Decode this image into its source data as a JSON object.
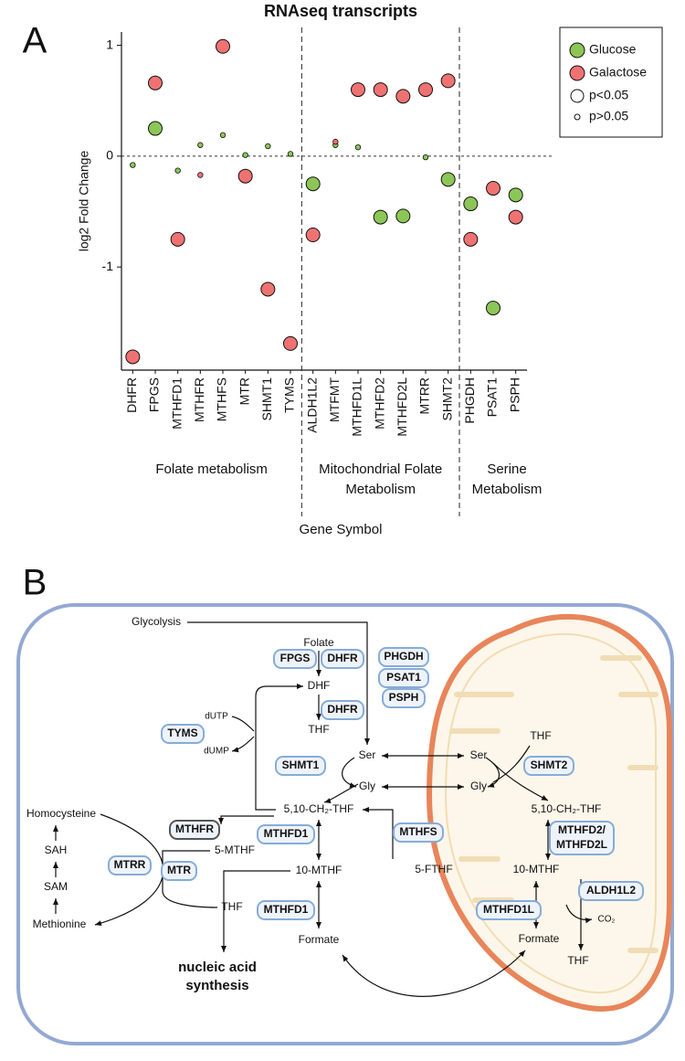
{
  "chart_data": {
    "type": "scatter",
    "title": "RNAseq transcripts",
    "panel_label": "A",
    "y_label": "log2 Fold Change",
    "x_label": "Gene Symbol",
    "categories": [
      "DHFR",
      "FPGS",
      "MTHFD1",
      "MTHFR",
      "MTHFS",
      "MTR",
      "SHMT1",
      "TYMS",
      "ALDH1L2",
      "MTFMT",
      "MTHFD1L",
      "MTHFD2",
      "MTHFD2L",
      "MTRR",
      "SHMT2",
      "PHGDH",
      "PSAT1",
      "PSPH"
    ],
    "series": [
      {
        "name": "Glucose",
        "color": "#8cc657",
        "values": [
          -0.08,
          0.25,
          -0.13,
          0.1,
          0.19,
          0.01,
          0.09,
          0.02,
          -0.25,
          0.1,
          0.08,
          -0.55,
          -0.54,
          -0.01,
          -0.21,
          -0.43,
          -1.37,
          -0.35
        ],
        "significant": [
          false,
          true,
          false,
          false,
          false,
          false,
          false,
          false,
          true,
          false,
          false,
          true,
          true,
          false,
          true,
          true,
          true,
          true
        ]
      },
      {
        "name": "Galactose",
        "color": "#ef7272",
        "values": [
          -1.81,
          0.66,
          -0.75,
          -0.17,
          0.99,
          -0.18,
          -1.2,
          -1.69,
          -0.71,
          0.13,
          0.6,
          0.6,
          0.54,
          0.6,
          0.68,
          -0.75,
          -0.29,
          -0.55
        ],
        "significant": [
          true,
          true,
          true,
          false,
          true,
          true,
          true,
          true,
          true,
          false,
          true,
          true,
          true,
          true,
          true,
          true,
          true,
          true
        ]
      }
    ],
    "size_legend": [
      "p<0.05",
      "p>0.05"
    ],
    "groups": [
      {
        "label": [
          "Folate metabolism"
        ],
        "start": 0,
        "end": 8
      },
      {
        "label": [
          "Mitochondrial Folate",
          "Metabolism"
        ],
        "start": 8,
        "end": 15
      },
      {
        "label": [
          "Serine",
          "Metabolism"
        ],
        "start": 15,
        "end": 18
      }
    ],
    "ylim": [
      -1.93,
      1.12
    ],
    "yticks": [
      -1,
      0,
      1
    ],
    "reference_line": 0,
    "legend": "top-right"
  },
  "diagram": {
    "label": "B",
    "texts": [
      "Glycolysis",
      "Folate",
      "DHF",
      "THF",
      "Ser",
      "Gly",
      "5,10-CH₂-THF",
      "dUTP",
      "dUMP",
      "Homocysteine",
      "SAH",
      "SAM",
      "Methionine",
      "5-MTHF",
      "THF",
      "10-MTHF",
      "5-FTHF",
      "Formate",
      "nucleic acid",
      "synthesis",
      "THF",
      "Ser",
      "Gly",
      "5,10-CH₂-THF",
      "10-MTHF",
      "CO₂",
      "Formate",
      "THF"
    ],
    "enzymes": [
      {
        "lines": [
          "FPGS"
        ],
        "color": "#9a1f24"
      },
      {
        "lines": [
          "DHFR"
        ],
        "color": "#2e6db4"
      },
      {
        "lines": [
          "PHGDH"
        ],
        "color": "#2e6db4"
      },
      {
        "lines": [
          "PSAT1"
        ],
        "color": "#2e6db4"
      },
      {
        "lines": [
          "PSPH"
        ],
        "color": "#2e6db4"
      },
      {
        "lines": [
          "DHFR"
        ],
        "color": "#2e6db4"
      },
      {
        "lines": [
          "TYMS"
        ],
        "color": "#2e6db4"
      },
      {
        "lines": [
          "SHMT1"
        ],
        "color": "#2e6db4"
      },
      {
        "lines": [
          "SHMT2"
        ],
        "color": "#9a1f24"
      },
      {
        "lines": [
          "MTHFR"
        ],
        "color": "#222222"
      },
      {
        "lines": [
          "MTHFD1"
        ],
        "color": "#2e6db4"
      },
      {
        "lines": [
          "MTHFS"
        ],
        "color": "#9a1f24"
      },
      {
        "lines": [
          "MTRR"
        ],
        "color": "#9a1f24"
      },
      {
        "lines": [
          "MTR"
        ],
        "color": "#2e6db4"
      },
      {
        "lines": [
          "MTHFD2/",
          "MTHFD2L"
        ],
        "color": "#9a1f24"
      },
      {
        "lines": [
          "ALDH1L2"
        ],
        "color": "#2e6db4"
      },
      {
        "lines": [
          "MTHFD1"
        ],
        "color": "#2e6db4"
      },
      {
        "lines": [
          "MTHFD1L"
        ],
        "color": "#9a1f24"
      }
    ]
  }
}
